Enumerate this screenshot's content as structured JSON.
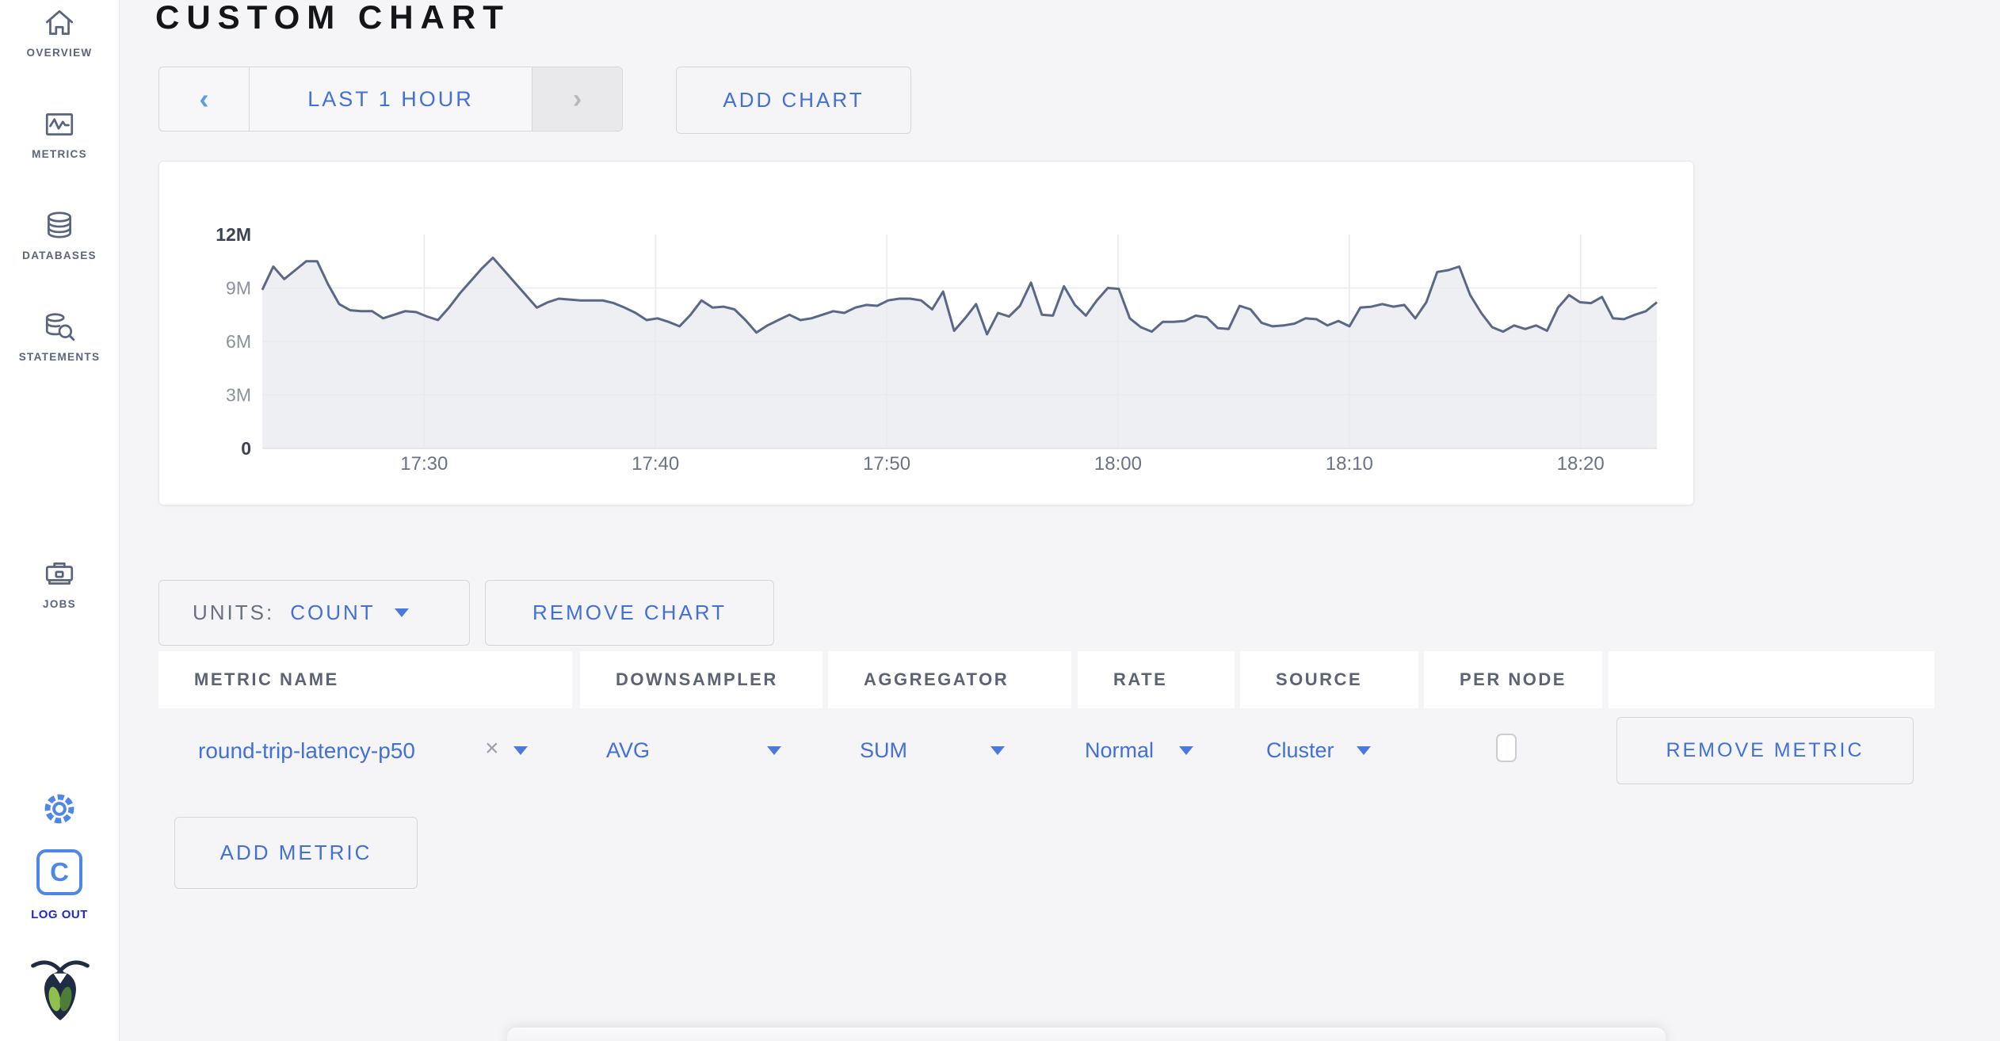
{
  "colors": {
    "accent_blue": "#4270d8",
    "sidebar_icon": "#5a6480",
    "sidebar_accent": "#4f87e8",
    "logout_blue": "#2226d8",
    "line": "#5a6787",
    "fill": "#edeff3",
    "grid": "#e9eaed"
  },
  "sidebar": {
    "items": [
      {
        "label": "OVERVIEW"
      },
      {
        "label": "METRICS"
      },
      {
        "label": "DATABASES"
      },
      {
        "label": "STATEMENTS"
      },
      {
        "label": "JOBS"
      }
    ],
    "c_logo_letter": "C",
    "logout_label": "LOG OUT"
  },
  "header": {
    "title": "CUSTOM CHART"
  },
  "toolbar": {
    "timescale_prev": "‹",
    "timescale_label": "LAST 1 HOUR",
    "timescale_next": "›",
    "add_chart_label": "ADD CHART"
  },
  "chart_controls": {
    "units_caption": "UNITS:",
    "units_value": "COUNT",
    "remove_chart_label": "REMOVE CHART",
    "add_metric_label": "ADD METRIC"
  },
  "table": {
    "headers": [
      "METRIC NAME",
      "DOWNSAMPLER",
      "AGGREGATOR",
      "RATE",
      "SOURCE",
      "PER NODE"
    ],
    "row": {
      "metric_name": "round-trip-latency-p50",
      "clear_symbol": "×",
      "downsampler": "AVG",
      "aggregator": "SUM",
      "rate": "Normal",
      "source": "Cluster",
      "per_node_checked": false,
      "remove_label": "REMOVE METRIC"
    }
  },
  "chart_data": {
    "type": "area",
    "series_name": "round-trip-latency-p50",
    "unit": "count",
    "ylim": [
      0,
      12
    ],
    "y_ticks": [
      {
        "label": "0",
        "value": 0
      },
      {
        "label": "3M",
        "value": 3
      },
      {
        "label": "6M",
        "value": 6
      },
      {
        "label": "9M",
        "value": 9
      },
      {
        "label": "12M",
        "value": 12
      }
    ],
    "x_ticks": [
      "17:30",
      "17:40",
      "17:50",
      "18:00",
      "18:10",
      "18:20"
    ],
    "x_first_tick_offset_min": 7,
    "x_tick_interval_min": 10,
    "x_span_min": 60.3,
    "grid": true,
    "values_millions": [
      8.9,
      10.2,
      9.5,
      10.0,
      10.5,
      10.5,
      9.2,
      8.1,
      7.75,
      7.7,
      7.7,
      7.3,
      7.5,
      7.7,
      7.65,
      7.4,
      7.2,
      7.9,
      8.7,
      9.4,
      10.1,
      10.7,
      10.0,
      9.3,
      8.6,
      7.9,
      8.2,
      8.4,
      8.35,
      8.3,
      8.3,
      8.3,
      8.15,
      7.9,
      7.6,
      7.2,
      7.3,
      7.1,
      6.85,
      7.5,
      8.3,
      7.9,
      7.95,
      7.8,
      7.2,
      6.5,
      6.9,
      7.2,
      7.5,
      7.2,
      7.3,
      7.5,
      7.7,
      7.6,
      7.9,
      8.05,
      8.0,
      8.3,
      8.4,
      8.4,
      8.3,
      7.8,
      8.8,
      6.6,
      7.3,
      8.1,
      6.4,
      7.6,
      7.4,
      8.0,
      9.3,
      7.5,
      7.45,
      9.1,
      8.05,
      7.45,
      8.3,
      9.0,
      8.95,
      7.3,
      6.8,
      6.55,
      7.1,
      7.1,
      7.15,
      7.45,
      7.35,
      6.75,
      6.7,
      8.0,
      7.8,
      7.05,
      6.85,
      6.9,
      7.0,
      7.3,
      7.25,
      6.9,
      7.15,
      6.85,
      7.9,
      7.95,
      8.1,
      7.95,
      8.05,
      7.3,
      8.2,
      9.9,
      10.0,
      10.2,
      8.6,
      7.6,
      6.8,
      6.55,
      6.9,
      6.7,
      6.9,
      6.6,
      7.9,
      8.6,
      8.2,
      8.15,
      8.5,
      7.3,
      7.25,
      7.5,
      7.7,
      8.2
    ]
  }
}
